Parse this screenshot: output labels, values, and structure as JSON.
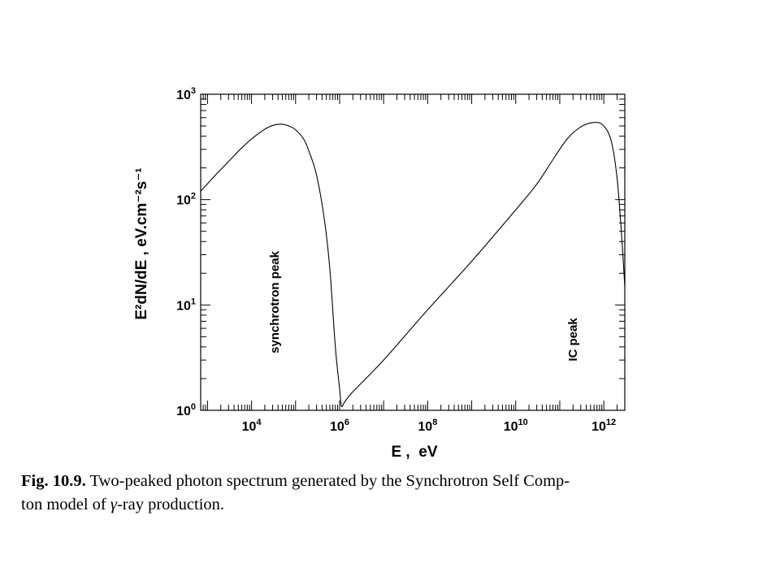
{
  "chart_data": {
    "type": "line",
    "xscale": "log",
    "yscale": "log",
    "xlim": [
      700,
      3000000000000.0
    ],
    "ylim": [
      1,
      1000
    ],
    "xlabel": "E ,  eV",
    "ylabel": "E²dN/dE , eV.cm⁻²s⁻¹",
    "xticks": [
      {
        "value": 10000.0,
        "base": "10",
        "exp": "4"
      },
      {
        "value": 1000000.0,
        "base": "10",
        "exp": "6"
      },
      {
        "value": 100000000.0,
        "base": "10",
        "exp": "8"
      },
      {
        "value": 10000000000.0,
        "base": "10",
        "exp": "10"
      },
      {
        "value": 1000000000000.0,
        "base": "10",
        "exp": "12"
      }
    ],
    "yticks": [
      {
        "value": 1,
        "base": "10",
        "exp": "0"
      },
      {
        "value": 10,
        "base": "10",
        "exp": "1"
      },
      {
        "value": 100,
        "base": "10",
        "exp": "2"
      },
      {
        "value": 1000,
        "base": "10",
        "exp": "3"
      }
    ],
    "grid": false,
    "series": [
      {
        "x": [
          700,
          1500,
          3000,
          6000,
          12000,
          25000,
          45000,
          70000,
          100000,
          150000,
          200000,
          300000,
          450000,
          600000,
          800000,
          1000000,
          1100000,
          1300000,
          2000000,
          10000000,
          100000000,
          1000000000,
          10000000000,
          30000000000,
          70000000000,
          150000000000,
          300000000000,
          600000000000,
          1000000000000,
          1500000000000,
          2000000000000,
          2500000000000,
          3000000000000
        ],
        "y": [
          120,
          170,
          230,
          310,
          400,
          490,
          520,
          500,
          460,
          380,
          290,
          170,
          65,
          22,
          4,
          1.6,
          1.1,
          1.2,
          1.5,
          3,
          9,
          26,
          80,
          140,
          240,
          380,
          490,
          540,
          500,
          350,
          160,
          50,
          15
        ]
      }
    ],
    "annotations": [
      {
        "text": "synchrotron peak",
        "x": 30000,
        "y": 10
      },
      {
        "text": "IC peak",
        "x": 200000000000,
        "y": 10
      }
    ]
  },
  "caption": {
    "label": "Fig. 10.9.",
    "line1": "Two-peaked photon spectrum generated by the Synchrotron Self Comp-",
    "line2_pre": "ton model of ",
    "gamma": "γ",
    "line2_post": "-ray production."
  }
}
